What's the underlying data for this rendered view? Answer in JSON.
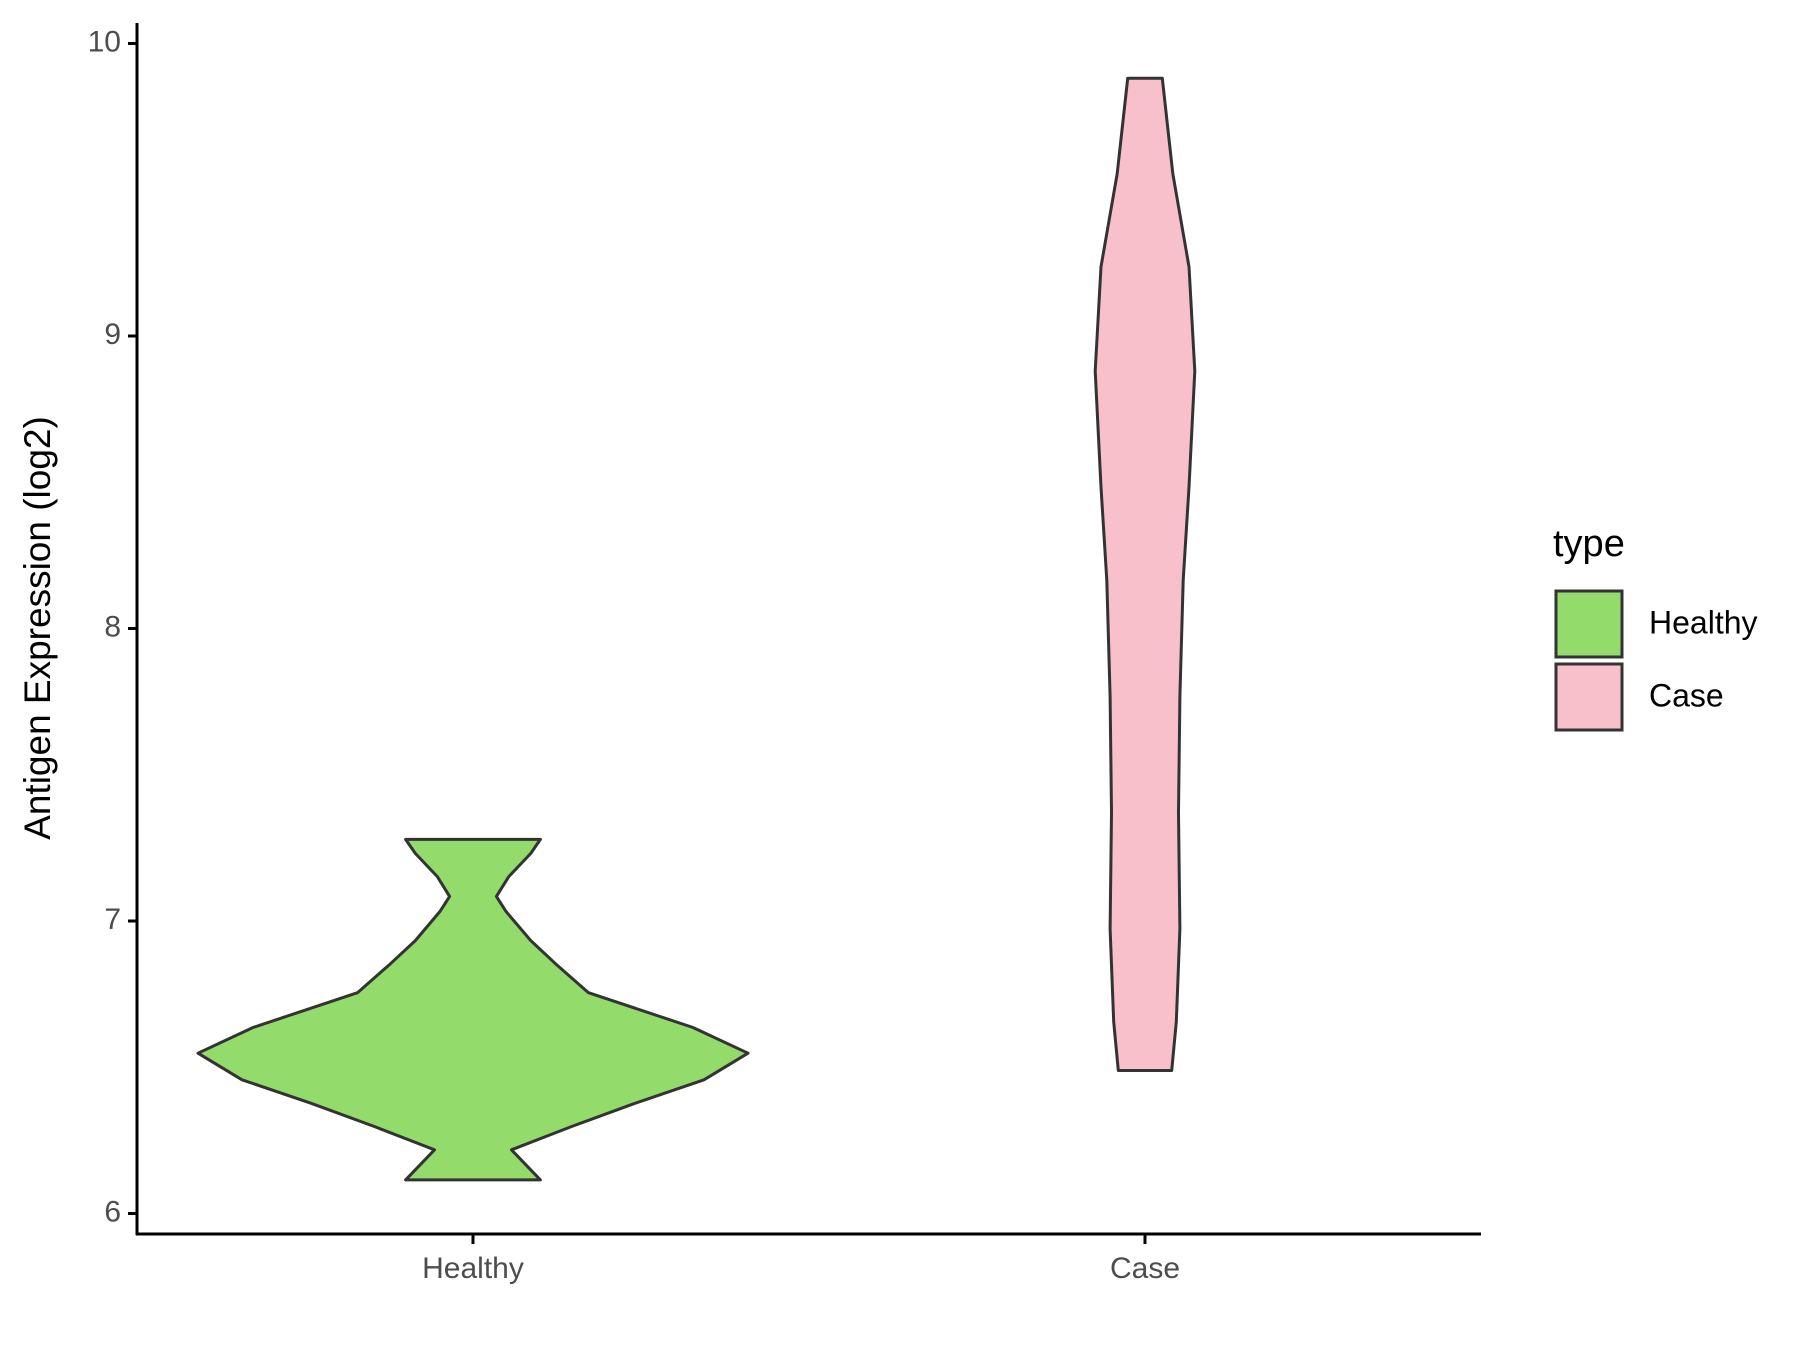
{
  "chart_data": {
    "type": "violin",
    "y_label": "Antigen Expression (log2)",
    "categories": [
      "Healthy",
      "Case"
    ],
    "legend_title": "type",
    "legend_position": "right",
    "ylim": [
      5.93,
      10.07
    ],
    "yticks": [
      6,
      7,
      8,
      9,
      10
    ],
    "grid": false,
    "series": [
      {
        "name": "Healthy",
        "color": "#93db6b",
        "y": [
          6.115,
          6.218,
          6.298,
          6.377,
          6.457,
          6.548,
          6.636,
          6.755,
          6.854,
          6.933,
          7.033,
          7.084,
          7.152,
          7.231,
          7.279
        ],
        "width": [
          0.245,
          0.14,
          0.36,
          0.59,
          0.84,
          1.0,
          0.8,
          0.42,
          0.3,
          0.21,
          0.12,
          0.085,
          0.13,
          0.21,
          0.245
        ]
      },
      {
        "name": "Case",
        "color": "#f7c0cb",
        "y": [
          6.489,
          6.655,
          6.973,
          7.37,
          7.768,
          8.165,
          8.483,
          8.88,
          9.237,
          9.555,
          9.881
        ],
        "width": [
          0.097,
          0.114,
          0.127,
          0.122,
          0.127,
          0.139,
          0.16,
          0.181,
          0.16,
          0.101,
          0.063
        ]
      }
    ]
  }
}
